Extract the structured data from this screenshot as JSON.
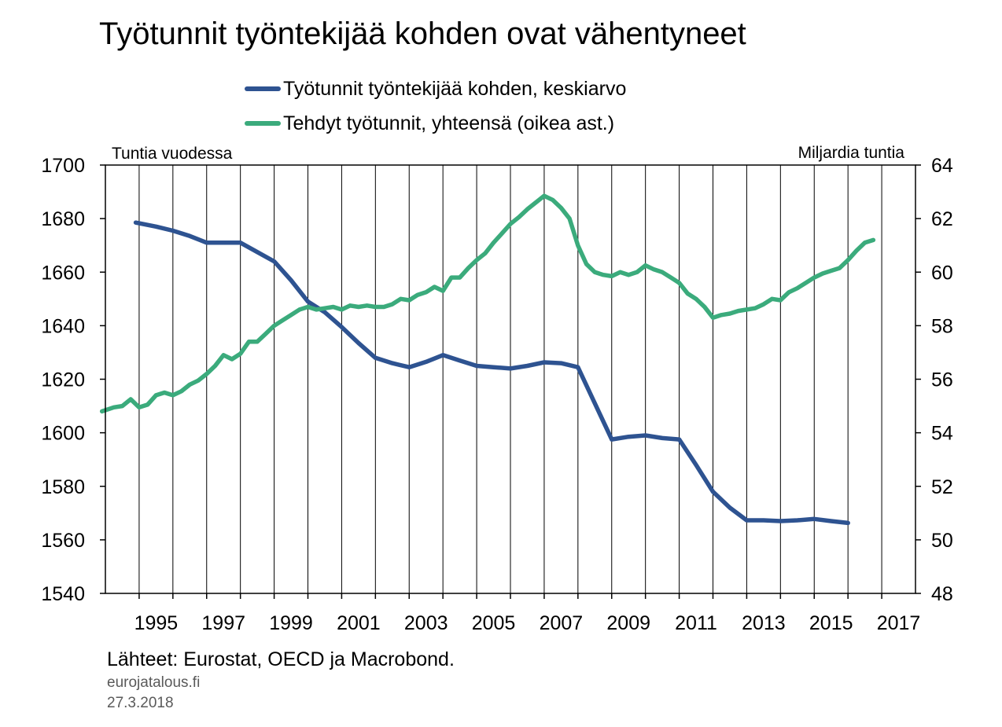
{
  "chart_data": {
    "type": "line",
    "title": "Työtunnit työntekijää kohden ovat vähentyneet",
    "y_left_label": "Tuntia vuodessa",
    "y_right_label": "Miljardia tuntia",
    "y_left_lim": [
      1540,
      1700
    ],
    "y_right_lim": [
      48,
      64
    ],
    "y_left_ticks": [
      "1540",
      "1560",
      "1580",
      "1600",
      "1620",
      "1640",
      "1660",
      "1680",
      "1700"
    ],
    "y_right_ticks": [
      "48",
      "50",
      "52",
      "54",
      "56",
      "58",
      "60",
      "62",
      "64"
    ],
    "x_lim": [
      1994,
      2018
    ],
    "x_tick_labels": [
      "1995",
      "1997",
      "1999",
      "2001",
      "2003",
      "2005",
      "2007",
      "2009",
      "2011",
      "2013",
      "2015",
      "2017"
    ],
    "grid": "vertical lines at year boundaries",
    "legend_position": "top-center",
    "series": [
      {
        "name": "Työtunnit työntekijää kohden, keskiarvo",
        "axis": "left",
        "color": "#2e5391",
        "x": [
          1994.9,
          1995.5,
          1996.0,
          1996.5,
          1997.0,
          1997.5,
          1998.0,
          1998.5,
          1999.0,
          1999.5,
          2000.0,
          2000.5,
          2001.0,
          2001.5,
          2002.0,
          2002.5,
          2003.0,
          2003.5,
          2004.0,
          2004.5,
          2005.0,
          2005.5,
          2006.0,
          2006.5,
          2007.0,
          2007.5,
          2008.0,
          2008.5,
          2009.0,
          2009.5,
          2010.0,
          2010.5,
          2011.0,
          2011.5,
          2012.0,
          2012.5,
          2013.0,
          2013.5,
          2014.0,
          2014.5,
          2015.0,
          2015.5,
          2016.0
        ],
        "values": [
          1678.5,
          1677.0,
          1675.5,
          1673.5,
          1671.0,
          1671.0,
          1671.0,
          1667.5,
          1664.0,
          1657.0,
          1649.0,
          1645.0,
          1639.5,
          1633.5,
          1628.0,
          1626.0,
          1624.5,
          1626.5,
          1629.0,
          1627.0,
          1625.0,
          1624.5,
          1624.0,
          1625.0,
          1626.3,
          1626.0,
          1624.5,
          1611.0,
          1597.5,
          1598.5,
          1599.0,
          1598.0,
          1597.5,
          1588.0,
          1578.0,
          1572.0,
          1567.3,
          1567.3,
          1567.0,
          1567.3,
          1567.8,
          1567.0,
          1566.3
        ]
      },
      {
        "name": "Tehdyt työtunnit, yhteensä (oikea ast.)",
        "axis": "right",
        "color": "#3bab7c",
        "x": [
          1993.9,
          1994.25,
          1994.5,
          1994.75,
          1995.0,
          1995.25,
          1995.5,
          1995.75,
          1996.0,
          1996.25,
          1996.5,
          1996.75,
          1997.0,
          1997.25,
          1997.5,
          1997.75,
          1998.0,
          1998.25,
          1998.5,
          1998.75,
          1999.0,
          1999.25,
          1999.5,
          1999.75,
          2000.0,
          2000.25,
          2000.5,
          2000.75,
          2001.0,
          2001.25,
          2001.5,
          2001.75,
          2002.0,
          2002.25,
          2002.5,
          2002.75,
          2003.0,
          2003.25,
          2003.5,
          2003.75,
          2004.0,
          2004.25,
          2004.5,
          2004.75,
          2005.0,
          2005.25,
          2005.5,
          2005.75,
          2006.0,
          2006.25,
          2006.5,
          2006.75,
          2007.0,
          2007.25,
          2007.5,
          2007.75,
          2008.0,
          2008.25,
          2008.5,
          2008.75,
          2009.0,
          2009.25,
          2009.5,
          2009.75,
          2010.0,
          2010.25,
          2010.5,
          2010.75,
          2011.0,
          2011.25,
          2011.5,
          2011.75,
          2012.0,
          2012.25,
          2012.5,
          2012.75,
          2013.0,
          2013.25,
          2013.5,
          2013.75,
          2014.0,
          2014.25,
          2014.5,
          2014.75,
          2015.0,
          2015.25,
          2015.5,
          2015.75,
          2016.0,
          2016.25,
          2016.5,
          2016.75
        ],
        "values": [
          54.8,
          54.95,
          55.0,
          55.25,
          54.95,
          55.05,
          55.4,
          55.5,
          55.4,
          55.55,
          55.8,
          55.95,
          56.2,
          56.5,
          56.9,
          56.75,
          56.95,
          57.4,
          57.4,
          57.7,
          58.0,
          58.2,
          58.4,
          58.6,
          58.7,
          58.6,
          58.65,
          58.7,
          58.6,
          58.75,
          58.7,
          58.75,
          58.7,
          58.7,
          58.8,
          59.0,
          58.95,
          59.15,
          59.25,
          59.45,
          59.3,
          59.8,
          59.8,
          60.15,
          60.45,
          60.7,
          61.1,
          61.45,
          61.8,
          62.05,
          62.35,
          62.6,
          62.85,
          62.7,
          62.4,
          62.0,
          61.0,
          60.3,
          60.0,
          59.9,
          59.85,
          60.0,
          59.9,
          60.0,
          60.25,
          60.1,
          60.0,
          59.8,
          59.6,
          59.2,
          59.0,
          58.7,
          58.3,
          58.4,
          58.45,
          58.55,
          58.6,
          58.65,
          58.8,
          59.0,
          58.95,
          59.25,
          59.4,
          59.6,
          59.8,
          59.95,
          60.05,
          60.15,
          60.45,
          60.8,
          61.1,
          61.2
        ]
      }
    ],
    "source": "Lähteet: Eurostat, OECD ja Macrobond.",
    "site": "eurojatalous.fi",
    "date": "27.3.2018"
  }
}
